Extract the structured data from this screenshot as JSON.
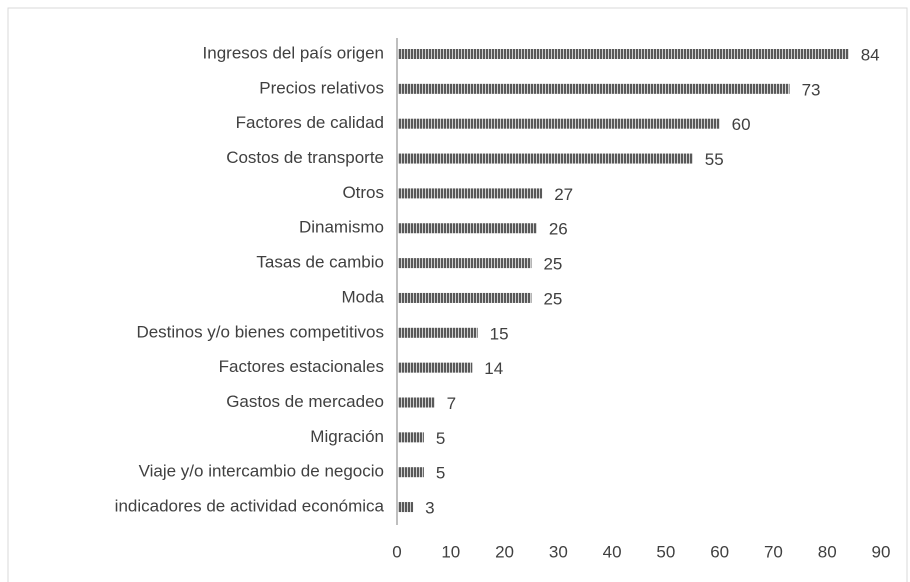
{
  "chart_data": {
    "type": "bar",
    "orientation": "horizontal",
    "categories": [
      "Ingresos del país origen",
      "Precios relativos",
      "Factores de calidad",
      "Costos de transporte",
      "Otros",
      "Dinamismo",
      "Tasas de cambio",
      "Moda",
      "Destinos y/o bienes competitivos",
      "Factores estacionales",
      "Gastos de mercadeo",
      "Migración",
      "Viaje y/o intercambio de negocio",
      "indicadores de actividad económica"
    ],
    "values": [
      84,
      73,
      60,
      55,
      27,
      26,
      25,
      25,
      15,
      14,
      7,
      5,
      5,
      3
    ],
    "color": "#595959",
    "xlim": [
      0,
      90
    ],
    "xticks": [
      0,
      10,
      20,
      30,
      40,
      50,
      60,
      70,
      80,
      90
    ],
    "grid": false
  }
}
